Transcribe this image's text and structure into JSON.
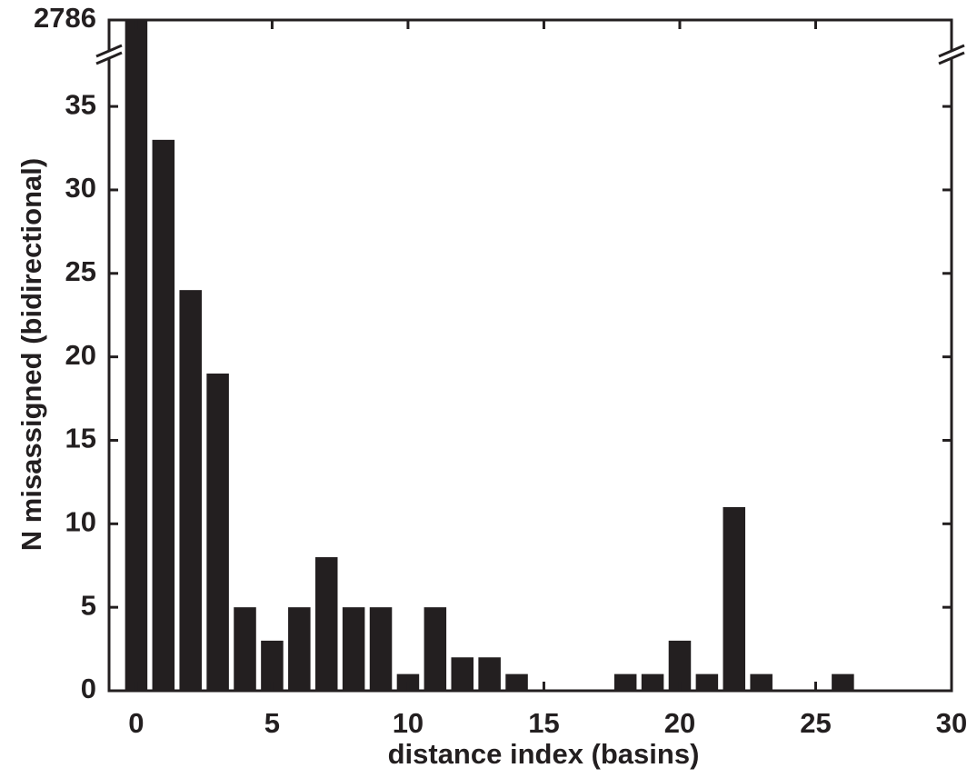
{
  "chart_data": {
    "type": "bar",
    "x_label": "distance  index  (basins)",
    "y_label": "N  misassigned  (bidirectional)",
    "x": [
      0,
      1,
      2,
      3,
      4,
      5,
      6,
      7,
      8,
      9,
      10,
      11,
      12,
      13,
      14,
      15,
      16,
      17,
      18,
      19,
      20,
      21,
      22,
      23,
      24,
      25,
      26,
      27,
      28,
      29
    ],
    "values": [
      2786,
      33,
      24,
      19,
      5,
      3,
      5,
      8,
      5,
      5,
      1,
      5,
      2,
      2,
      1,
      0,
      0,
      0,
      1,
      1,
      3,
      1,
      11,
      1,
      0,
      0,
      1,
      0,
      0,
      0
    ],
    "color": "#231f20",
    "xlim": [
      -1,
      30
    ],
    "xticks": [
      0,
      5,
      10,
      15,
      20,
      25,
      30
    ],
    "ylim": [
      0,
      2786
    ],
    "y_break": 38,
    "yticks": [
      0,
      5,
      10,
      15,
      20,
      25,
      30,
      35,
      2786
    ]
  }
}
